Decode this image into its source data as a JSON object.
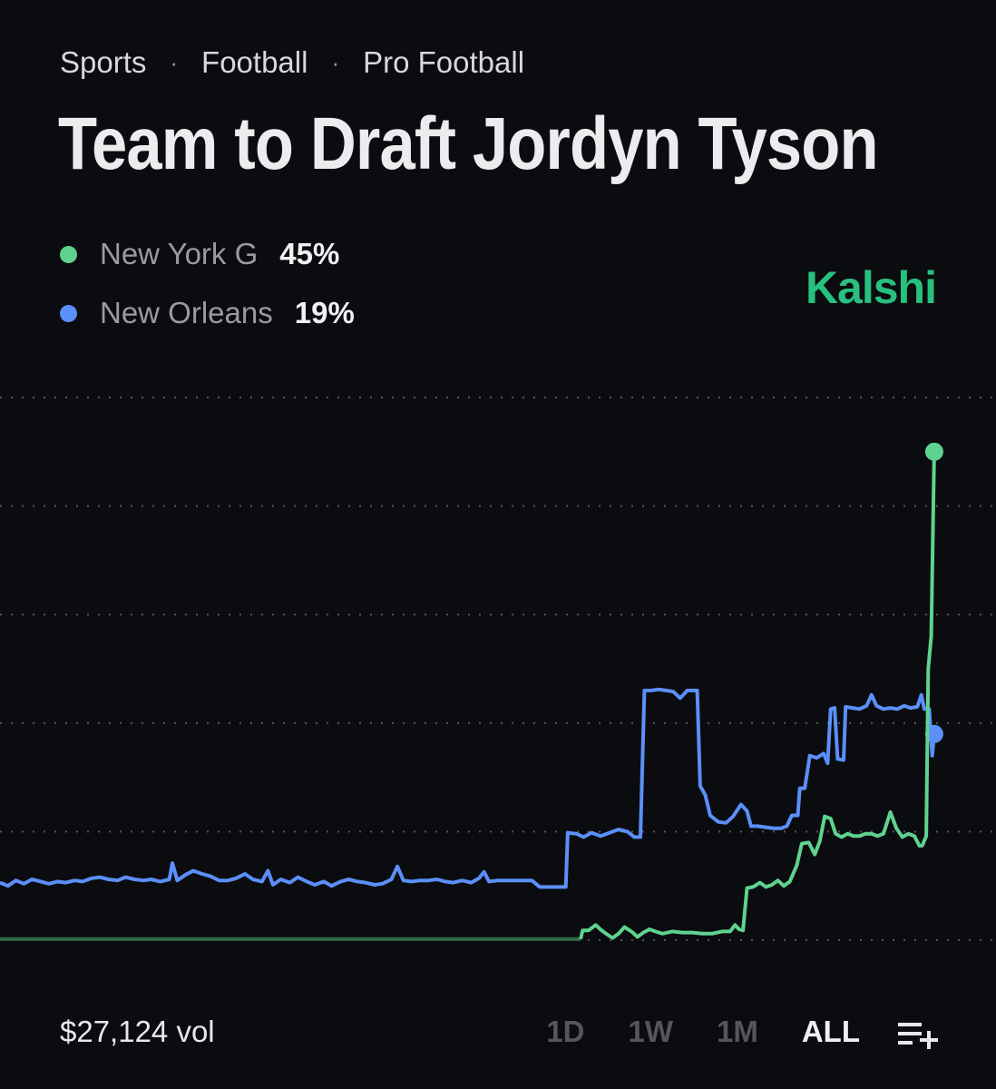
{
  "breadcrumb": [
    "Sports",
    "Football",
    "Pro Football"
  ],
  "title": "Team to Draft Jordyn Tyson",
  "brand": "Kalshi",
  "colors": {
    "green": "#5fd28f",
    "blue": "#5b8ff9",
    "brand": "#28c07e",
    "grid": "#55565c"
  },
  "legend": [
    {
      "name": "New York G",
      "value": "45%"
    },
    {
      "name": "New Orleans",
      "value": "19%"
    }
  ],
  "footer": {
    "volume": "$27,124 vol",
    "ranges": [
      "1D",
      "1W",
      "1M",
      "ALL"
    ],
    "active_range": "ALL",
    "add_icon": "playlist-add-icon"
  },
  "chart_data": {
    "type": "line",
    "ylim": [
      0,
      55
    ],
    "gridlines": [
      0,
      10,
      20,
      30,
      40,
      50
    ],
    "grid": true,
    "x_range": [
      0,
      100
    ],
    "series": [
      {
        "name": "New York G",
        "color": "#5fd28f",
        "points": [
          [
            0,
            0.1
          ],
          [
            58.3,
            0.1
          ],
          [
            58.5,
            0.9
          ],
          [
            59.1,
            0.9
          ],
          [
            59.8,
            1.4
          ],
          [
            60.4,
            0.9
          ],
          [
            61.0,
            0.5
          ],
          [
            61.5,
            0.2
          ],
          [
            62.1,
            0.6
          ],
          [
            62.7,
            1.2
          ],
          [
            63.4,
            0.8
          ],
          [
            64.0,
            0.3
          ],
          [
            64.6,
            0.7
          ],
          [
            65.2,
            1.0
          ],
          [
            65.8,
            0.8
          ],
          [
            66.5,
            0.6
          ],
          [
            67.5,
            0.8
          ],
          [
            68.5,
            0.7
          ],
          [
            69.5,
            0.7
          ],
          [
            70.5,
            0.6
          ],
          [
            71.5,
            0.6
          ],
          [
            72.5,
            0.8
          ],
          [
            73.3,
            0.8
          ],
          [
            73.8,
            1.4
          ],
          [
            74.2,
            1.0
          ],
          [
            74.6,
            0.9
          ],
          [
            75.0,
            4.8
          ],
          [
            75.6,
            4.9
          ],
          [
            76.3,
            5.3
          ],
          [
            76.9,
            4.9
          ],
          [
            77.5,
            5.1
          ],
          [
            78.1,
            5.5
          ],
          [
            78.7,
            5.0
          ],
          [
            79.3,
            5.4
          ],
          [
            80.0,
            6.9
          ],
          [
            80.5,
            8.9
          ],
          [
            81.2,
            9.0
          ],
          [
            81.8,
            7.9
          ],
          [
            82.3,
            9.1
          ],
          [
            82.8,
            11.4
          ],
          [
            83.4,
            11.2
          ],
          [
            83.9,
            9.8
          ],
          [
            84.5,
            9.5
          ],
          [
            85.1,
            9.8
          ],
          [
            85.7,
            9.6
          ],
          [
            86.3,
            9.6
          ],
          [
            86.9,
            9.8
          ],
          [
            87.5,
            9.8
          ],
          [
            88.1,
            9.6
          ],
          [
            88.7,
            9.8
          ],
          [
            89.4,
            11.8
          ],
          [
            90.0,
            10.3
          ],
          [
            90.6,
            9.5
          ],
          [
            91.2,
            9.8
          ],
          [
            91.8,
            9.6
          ],
          [
            92.3,
            8.7
          ],
          [
            92.6,
            8.7
          ],
          [
            93.0,
            9.6
          ],
          [
            93.2,
            25.0
          ],
          [
            93.5,
            28.0
          ],
          [
            93.8,
            45.0
          ]
        ]
      },
      {
        "name": "New Orleans",
        "color": "#5b8ff9",
        "points": [
          [
            0,
            5.3
          ],
          [
            0.8,
            5.0
          ],
          [
            1.6,
            5.5
          ],
          [
            2.4,
            5.2
          ],
          [
            3.2,
            5.6
          ],
          [
            4.1,
            5.4
          ],
          [
            4.9,
            5.2
          ],
          [
            5.8,
            5.4
          ],
          [
            6.6,
            5.3
          ],
          [
            7.5,
            5.5
          ],
          [
            8.3,
            5.4
          ],
          [
            9.2,
            5.7
          ],
          [
            10.0,
            5.8
          ],
          [
            10.9,
            5.6
          ],
          [
            11.8,
            5.5
          ],
          [
            12.6,
            5.8
          ],
          [
            13.5,
            5.6
          ],
          [
            14.4,
            5.5
          ],
          [
            15.2,
            5.6
          ],
          [
            16.1,
            5.4
          ],
          [
            17.0,
            5.6
          ],
          [
            17.3,
            7.1
          ],
          [
            17.8,
            5.5
          ],
          [
            18.6,
            6.0
          ],
          [
            19.4,
            6.4
          ],
          [
            20.3,
            6.1
          ],
          [
            21.1,
            5.9
          ],
          [
            22.0,
            5.5
          ],
          [
            22.9,
            5.5
          ],
          [
            23.7,
            5.7
          ],
          [
            24.6,
            6.1
          ],
          [
            25.4,
            5.6
          ],
          [
            26.3,
            5.4
          ],
          [
            26.9,
            6.4
          ],
          [
            27.4,
            5.1
          ],
          [
            28.2,
            5.6
          ],
          [
            29.1,
            5.3
          ],
          [
            29.9,
            5.8
          ],
          [
            30.8,
            5.4
          ],
          [
            31.6,
            5.1
          ],
          [
            32.5,
            5.4
          ],
          [
            33.3,
            5.0
          ],
          [
            34.2,
            5.4
          ],
          [
            35.0,
            5.6
          ],
          [
            35.9,
            5.4
          ],
          [
            36.7,
            5.3
          ],
          [
            37.6,
            5.1
          ],
          [
            38.4,
            5.2
          ],
          [
            39.3,
            5.6
          ],
          [
            39.9,
            6.8
          ],
          [
            40.5,
            5.5
          ],
          [
            41.3,
            5.4
          ],
          [
            42.2,
            5.5
          ],
          [
            43.0,
            5.5
          ],
          [
            43.9,
            5.6
          ],
          [
            44.7,
            5.4
          ],
          [
            45.5,
            5.3
          ],
          [
            46.4,
            5.5
          ],
          [
            47.3,
            5.3
          ],
          [
            48.1,
            5.7
          ],
          [
            48.6,
            6.3
          ],
          [
            49.1,
            5.4
          ],
          [
            50.0,
            5.5
          ],
          [
            50.9,
            5.5
          ],
          [
            51.7,
            5.5
          ],
          [
            52.6,
            5.5
          ],
          [
            53.4,
            5.5
          ],
          [
            54.2,
            4.9
          ],
          [
            55.1,
            4.9
          ],
          [
            56.0,
            4.9
          ],
          [
            56.8,
            4.9
          ],
          [
            57.0,
            9.9
          ],
          [
            57.9,
            9.8
          ],
          [
            58.6,
            9.5
          ],
          [
            59.4,
            9.9
          ],
          [
            60.3,
            9.6
          ],
          [
            61.2,
            9.9
          ],
          [
            62.1,
            10.2
          ],
          [
            63.0,
            10.0
          ],
          [
            63.7,
            9.5
          ],
          [
            64.3,
            9.5
          ],
          [
            64.7,
            23.0
          ],
          [
            65.4,
            23.0
          ],
          [
            66.1,
            23.1
          ],
          [
            66.9,
            23.0
          ],
          [
            67.6,
            22.9
          ],
          [
            68.3,
            22.3
          ],
          [
            69.0,
            23.0
          ],
          [
            69.7,
            23.0
          ],
          [
            70.0,
            23.0
          ],
          [
            70.3,
            14.2
          ],
          [
            70.8,
            13.4
          ],
          [
            71.3,
            11.5
          ],
          [
            72.1,
            10.9
          ],
          [
            72.9,
            10.8
          ],
          [
            73.6,
            11.4
          ],
          [
            74.4,
            12.5
          ],
          [
            75.0,
            11.9
          ],
          [
            75.4,
            10.5
          ],
          [
            76.1,
            10.5
          ],
          [
            76.9,
            10.4
          ],
          [
            77.7,
            10.3
          ],
          [
            78.4,
            10.3
          ],
          [
            79.0,
            10.5
          ],
          [
            79.5,
            11.5
          ],
          [
            80.1,
            11.5
          ],
          [
            80.3,
            14.0
          ],
          [
            80.8,
            14.0
          ],
          [
            81.3,
            17.0
          ],
          [
            82.0,
            16.8
          ],
          [
            82.7,
            17.2
          ],
          [
            83.1,
            16.3
          ],
          [
            83.4,
            21.3
          ],
          [
            83.8,
            21.4
          ],
          [
            84.1,
            16.7
          ],
          [
            84.7,
            16.6
          ],
          [
            84.9,
            21.5
          ],
          [
            85.6,
            21.4
          ],
          [
            86.3,
            21.3
          ],
          [
            87.0,
            21.6
          ],
          [
            87.5,
            22.6
          ],
          [
            88.0,
            21.6
          ],
          [
            88.7,
            21.3
          ],
          [
            89.4,
            21.4
          ],
          [
            90.1,
            21.3
          ],
          [
            90.8,
            21.6
          ],
          [
            91.4,
            21.4
          ],
          [
            92.1,
            21.5
          ],
          [
            92.5,
            22.6
          ],
          [
            92.8,
            21.3
          ],
          [
            93.3,
            21.3
          ],
          [
            93.6,
            17.0
          ],
          [
            93.8,
            19.0
          ]
        ]
      }
    ]
  }
}
